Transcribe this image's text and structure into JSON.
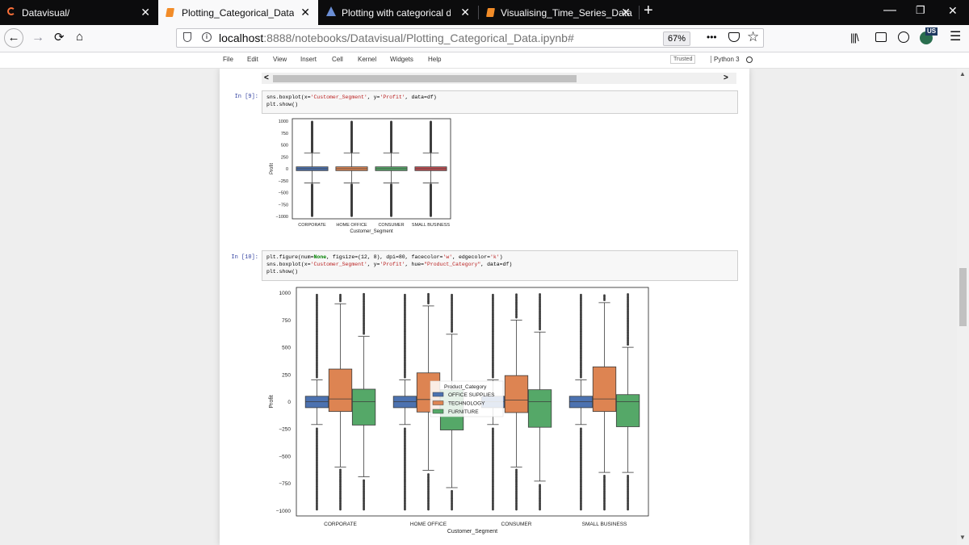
{
  "browser": {
    "tabs": [
      {
        "title": "Datavisual/",
        "active": false
      },
      {
        "title": "Plotting_Categorical_Data",
        "active": true
      },
      {
        "title": "Plotting with categorical data –",
        "active": false
      },
      {
        "title": "Visualising_Time_Series_Data",
        "active": false
      }
    ],
    "url_host": "localhost",
    "url_path": ":8888/notebooks/Datavisual/Plotting_Categorical_Data.ipynb#",
    "zoom": "67%",
    "more_label": "•••",
    "profile_badge": "US"
  },
  "jupyter": {
    "menu": [
      "File",
      "Edit",
      "View",
      "Insert",
      "Cell",
      "Kernel",
      "Widgets",
      "Help"
    ],
    "trusted": "Trusted",
    "kernel": "Python 3"
  },
  "cells": [
    {
      "prompt": "In [9]:",
      "lines": [
        "sns.boxplot(x='Customer_Segment', y='Profit', data=df)",
        "plt.show()"
      ]
    },
    {
      "prompt": "In [10]:",
      "lines": [
        "plt.figure(num=None, figsize=(12, 8), dpi=80, facecolor='w', edgecolor='k')",
        "sns.boxplot(x='Customer_Segment', y='Profit', hue=\"Product_Category\", data=df)",
        "plt.show()"
      ]
    }
  ],
  "colors": {
    "blue": "#4c72b0",
    "orange": "#dd8452",
    "green": "#55a868",
    "red": "#c44e52",
    "tab_bar": "#0c0c0d"
  },
  "chart_data": [
    {
      "type": "box",
      "xlabel": "Customer_Segment",
      "ylabel": "Profit",
      "ylim": [
        -1000,
        1000
      ],
      "yticks": [
        1000,
        750,
        500,
        250,
        0,
        -250,
        -500,
        -750,
        -1000
      ],
      "categories": [
        "CORPORATE",
        "HOME OFFICE",
        "CONSUMER",
        "SMALL BUSINESS"
      ],
      "boxes": [
        {
          "q1": -40,
          "median": 0,
          "q3": 40,
          "whisker_low": -300,
          "whisker_high": 330,
          "color": "#4c72b0"
        },
        {
          "q1": -40,
          "median": 0,
          "q3": 40,
          "whisker_low": -300,
          "whisker_high": 330,
          "color": "#dd8452"
        },
        {
          "q1": -40,
          "median": 0,
          "q3": 40,
          "whisker_low": -300,
          "whisker_high": 330,
          "color": "#55a868"
        },
        {
          "q1": -40,
          "median": 0,
          "q3": 40,
          "whisker_low": -300,
          "whisker_high": 330,
          "color": "#c44e52"
        }
      ]
    },
    {
      "type": "box",
      "xlabel": "Customer_Segment",
      "ylabel": "Profit",
      "ylim": [
        -1050,
        1050
      ],
      "yticks": [
        1000,
        750,
        500,
        250,
        0,
        -250,
        -500,
        -750,
        -1000
      ],
      "categories": [
        "CORPORATE",
        "HOME OFFICE",
        "CONSUMER",
        "SMALL BUSINESS"
      ],
      "legend": {
        "title": "Product_Category",
        "placement": "center",
        "entries": [
          {
            "label": "OFFICE SUPPLIES",
            "color": "#4c72b0"
          },
          {
            "label": "TECHNOLOGY",
            "color": "#dd8452"
          },
          {
            "label": "FURNITURE",
            "color": "#55a868"
          }
        ]
      },
      "series": [
        {
          "name": "OFFICE SUPPLIES",
          "color": "#4c72b0",
          "boxes": [
            {
              "q1": -55,
              "median": 0,
              "q3": 50,
              "whisker_low": -210,
              "whisker_high": 200
            },
            {
              "q1": -55,
              "median": 0,
              "q3": 50,
              "whisker_low": -210,
              "whisker_high": 200
            },
            {
              "q1": -55,
              "median": 0,
              "q3": 50,
              "whisker_low": -210,
              "whisker_high": 200
            },
            {
              "q1": -55,
              "median": 0,
              "q3": 50,
              "whisker_low": -210,
              "whisker_high": 200
            }
          ]
        },
        {
          "name": "TECHNOLOGY",
          "color": "#dd8452",
          "boxes": [
            {
              "q1": -90,
              "median": 25,
              "q3": 300,
              "whisker_low": -600,
              "whisker_high": 900
            },
            {
              "q1": -95,
              "median": 20,
              "q3": 265,
              "whisker_low": -630,
              "whisker_high": 880
            },
            {
              "q1": -100,
              "median": 15,
              "q3": 240,
              "whisker_low": -600,
              "whisker_high": 750
            },
            {
              "q1": -90,
              "median": 25,
              "q3": 320,
              "whisker_low": -650,
              "whisker_high": 910
            }
          ]
        },
        {
          "name": "FURNITURE",
          "color": "#55a868",
          "boxes": [
            {
              "q1": -215,
              "median": 0,
              "q3": 115,
              "whisker_low": -690,
              "whisker_high": 600
            },
            {
              "q1": -260,
              "median": -5,
              "q3": 110,
              "whisker_low": -790,
              "whisker_high": 620
            },
            {
              "q1": -235,
              "median": 0,
              "q3": 110,
              "whisker_low": -730,
              "whisker_high": 640
            },
            {
              "q1": -230,
              "median": 0,
              "q3": 65,
              "whisker_low": -650,
              "whisker_high": 500
            }
          ]
        }
      ]
    }
  ]
}
